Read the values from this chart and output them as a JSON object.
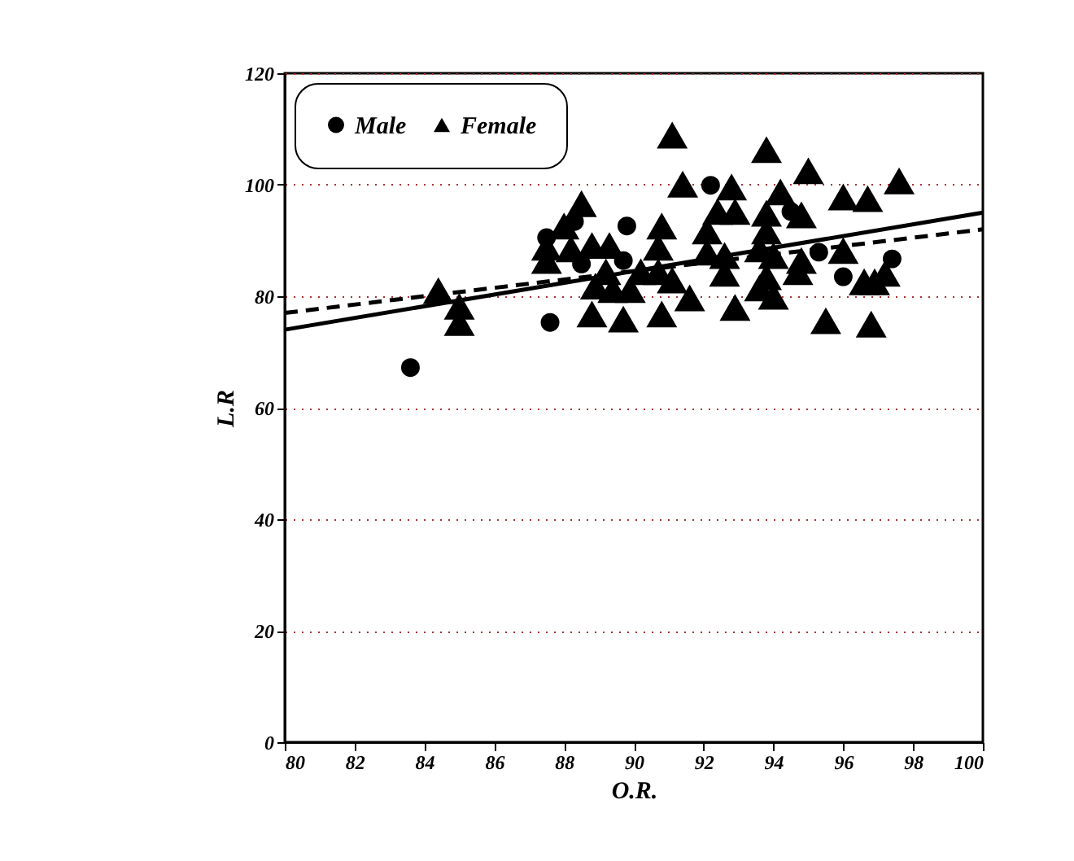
{
  "chart_data": {
    "type": "scatter",
    "xlabel": "O.R.",
    "ylabel": "L.R",
    "xlim": [
      80,
      100
    ],
    "xticks": [
      80,
      82,
      84,
      86,
      88,
      90,
      92,
      94,
      96,
      98,
      100
    ],
    "ylim": [
      0,
      120
    ],
    "yticks": [
      0,
      20,
      40,
      60,
      80,
      100,
      120
    ],
    "grid": "y",
    "legend": "top left",
    "series": [
      {
        "name": "Male",
        "color": "#000000",
        "marker": "circle",
        "x": [
          89.8,
          87.5,
          88.3,
          87.6,
          83.6,
          88.5,
          89.7,
          92.2,
          94.5,
          95.3,
          97.4,
          96.0
        ],
        "values": [
          92.6,
          90.5,
          93.4,
          75.3,
          67.2,
          85.8,
          86.4,
          99.9,
          95.2,
          87.9,
          86.7,
          83.5
        ]
      },
      {
        "name": "Female",
        "color": "#000000",
        "marker": "triangle",
        "x": [
          91.1,
          91.4,
          88.5,
          88.0,
          90.8,
          87.5,
          88.2,
          88.8,
          89.3,
          87.5,
          90.7,
          89.2,
          90.2,
          90.7,
          88.9,
          89.4,
          89.9,
          91.1,
          91.6,
          85.0,
          85.0,
          88.8,
          89.7,
          90.8,
          84.4,
          93.8,
          95.0,
          97.6,
          92.8,
          94.2,
          96.0,
          96.7,
          92.4,
          92.9,
          93.8,
          94.8,
          92.1,
          93.8,
          92.1,
          92.6,
          93.6,
          94.0,
          94.8,
          96.0,
          92.6,
          93.8,
          94.7,
          93.6,
          96.6,
          96.9,
          97.2,
          94.0,
          92.9,
          95.5,
          96.8
        ],
        "values": [
          108.9,
          100.1,
          96.6,
          92.6,
          92.6,
          88.8,
          88.5,
          89.1,
          89.1,
          86.4,
          88.8,
          84.4,
          84.4,
          84.4,
          81.8,
          81.2,
          81.2,
          82.9,
          79.7,
          78.2,
          75.3,
          76.8,
          75.9,
          76.8,
          81.0,
          106.3,
          102.5,
          100.7,
          99.6,
          98.7,
          97.8,
          97.5,
          95.2,
          95.2,
          94.9,
          94.6,
          91.7,
          91.7,
          87.9,
          87.3,
          88.5,
          87.3,
          86.4,
          88.2,
          84.1,
          83.5,
          84.4,
          81.5,
          82.6,
          82.6,
          84.1,
          80.0,
          78.0,
          75.6,
          75.0
        ]
      },
      {
        "type": "line",
        "color": "#000000",
        "line_style": "solid",
        "x": [
          80,
          100
        ],
        "values": [
          74,
          95
        ]
      },
      {
        "type": "line",
        "color": "#000000",
        "line_style": "dashed",
        "x": [
          80,
          100
        ],
        "values": [
          77,
          92
        ]
      }
    ]
  }
}
